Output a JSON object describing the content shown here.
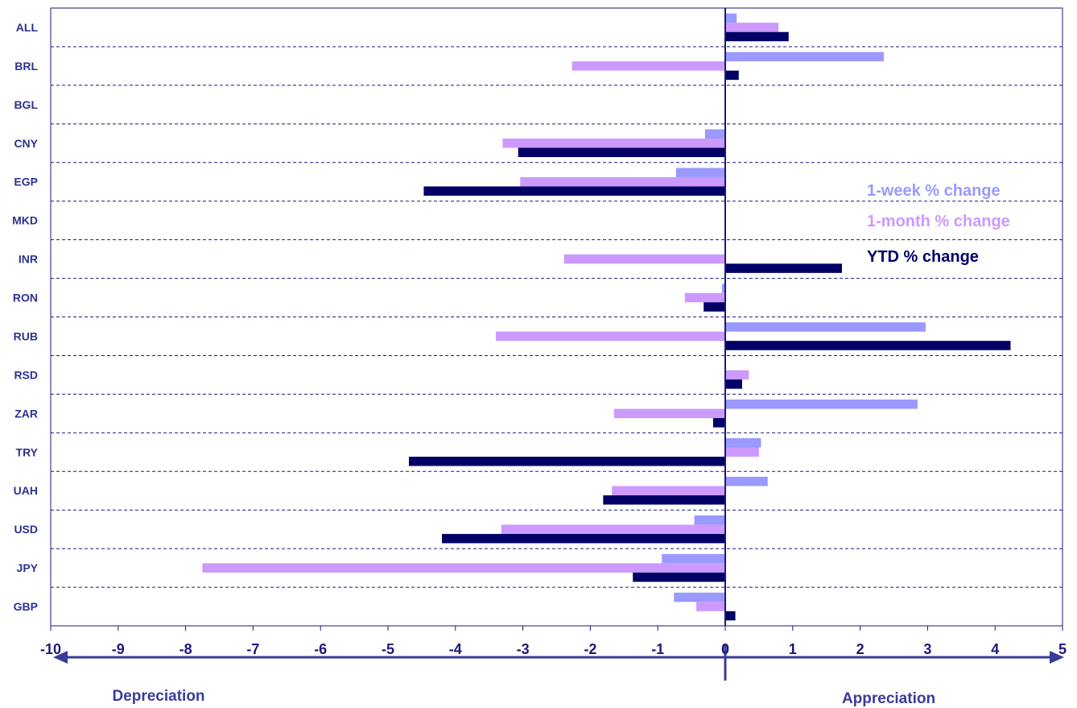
{
  "chart_data": {
    "type": "bar",
    "orientation": "horizontal",
    "categories": [
      "ALL",
      "BRL",
      "BGL",
      "CNY",
      "EGP",
      "MKD",
      "INR",
      "RON",
      "RUB",
      "RSD",
      "ZAR",
      "TRY",
      "UAH",
      "USD",
      "JPY",
      "GBP"
    ],
    "series": [
      {
        "name": "1-week % change",
        "color": "#9999ff",
        "values": [
          0.17,
          2.35,
          0,
          -0.3,
          -0.73,
          0,
          0,
          -0.05,
          2.97,
          0,
          2.85,
          0.53,
          0.63,
          -0.46,
          -0.94,
          -0.76
        ]
      },
      {
        "name": "1-month % change",
        "color": "#cc99ff",
        "values": [
          0.79,
          -2.27,
          0,
          -3.3,
          -3.04,
          0,
          -2.39,
          -0.6,
          -3.4,
          0.35,
          -1.65,
          0.5,
          -1.68,
          -3.32,
          -7.75,
          -0.43
        ]
      },
      {
        "name": "YTD % change",
        "color": "#000066",
        "values": [
          0.94,
          0.2,
          0,
          -3.07,
          -4.47,
          0,
          1.73,
          -0.32,
          4.23,
          0.25,
          -0.18,
          -4.69,
          -1.81,
          -4.2,
          -1.37,
          0.15
        ]
      }
    ],
    "xlim": [
      -10,
      5
    ],
    "x_ticks": [
      "-10",
      "-9",
      "-8",
      "-7",
      "-6",
      "-5",
      "-4",
      "-3",
      "-2",
      "-1",
      "0",
      "1",
      "2",
      "3",
      "4",
      "5"
    ],
    "legend": [
      {
        "label": "1-week % change",
        "color": "#9999ff"
      },
      {
        "label": "1-month % change",
        "color": "#cc99ff"
      },
      {
        "label": "YTD % change",
        "color": "#000066"
      }
    ],
    "legend_position": "right",
    "grid": "horizontal-dashed",
    "annotations": {
      "left": "Depreciation",
      "right": "Appreciation"
    },
    "title": "",
    "xlabel": "",
    "ylabel": ""
  }
}
